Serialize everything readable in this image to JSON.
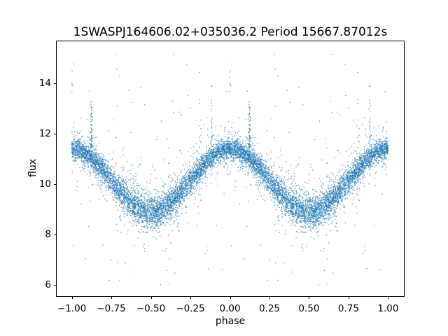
{
  "colors": {
    "marker": "#1f77b4",
    "axes": "#000000",
    "background": "#ffffff"
  },
  "chart_data": {
    "type": "scatter",
    "title": "1SWASPJ164606.02+035036.2 Period 15667.87012s",
    "xlabel": "phase",
    "ylabel": "flux",
    "xlim": [
      -1.1,
      1.1
    ],
    "ylim": [
      5.55,
      15.71
    ],
    "grid": false,
    "legend": "none",
    "marker_color": "#1f77b4",
    "marker_size_px": 1.3,
    "marker_alpha": 0.72,
    "x_ticks": {
      "values": [
        -1.0,
        -0.75,
        -0.5,
        -0.25,
        0.0,
        0.25,
        0.5,
        0.75,
        1.0
      ],
      "labels": [
        "−1.00",
        "−0.75",
        "−0.50",
        "−0.25",
        "0.00",
        "0.25",
        "0.50",
        "0.75",
        "1.00"
      ]
    },
    "y_ticks": {
      "values": [
        6,
        8,
        10,
        12,
        14
      ],
      "labels": [
        "6",
        "8",
        "10",
        "12",
        "14"
      ]
    },
    "trend": {
      "comment": "mean folded light curve, flux vs phase; curve repeats on [-1,0] and [0,1]",
      "phase": [
        -1.0,
        -0.9,
        -0.8,
        -0.7,
        -0.6,
        -0.5,
        -0.4,
        -0.3,
        -0.2,
        -0.1,
        0.0,
        0.1,
        0.2,
        0.3,
        0.4,
        0.5,
        0.6,
        0.7,
        0.8,
        0.9,
        1.0
      ],
      "flux": [
        11.4,
        11.16,
        10.54,
        9.76,
        9.14,
        8.9,
        9.14,
        9.76,
        10.54,
        11.16,
        11.4,
        11.16,
        10.54,
        9.76,
        9.14,
        8.9,
        9.14,
        9.76,
        10.54,
        11.16,
        11.4
      ]
    },
    "model": {
      "kind": "folded-lightcurve-scatter",
      "seed": 7,
      "n_base_points": 5200,
      "duplicated_at_phase_minus_1": true,
      "mean_flux": 10.15,
      "amplitude": 1.25,
      "sigma_at_max": 0.2,
      "sigma_extra_at_min": 0.11,
      "wide_tail_fraction": 0.13,
      "wide_tail_factor": 2.6,
      "low_outlier_fraction": 0.012,
      "low_outlier_range": [
        6.0,
        13.4
      ],
      "high_outlier_fraction": 0.007,
      "high_outlier_max": 15.2,
      "flux_clip": [
        5.95,
        15.25
      ],
      "outlier_columns": [
        {
          "phase": 0.124,
          "n": 60,
          "flux_base": 11.45,
          "flux_spread": 0.55,
          "flux_max": 13.3
        },
        {
          "phase": 0.885,
          "n": 26,
          "flux_base": 11.3,
          "flux_spread": 0.8,
          "flux_max": 13.9
        },
        {
          "phase": 0.004,
          "n": 8,
          "flux_base": 13.6,
          "flux_spread": 0.6,
          "flux_max": 15.2
        }
      ]
    }
  }
}
